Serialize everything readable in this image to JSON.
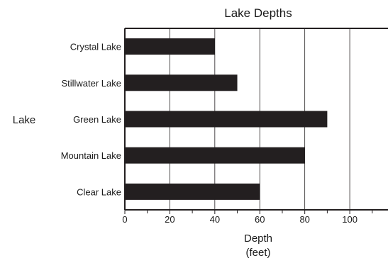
{
  "chart_data": {
    "type": "bar",
    "orientation": "horizontal",
    "title": "Lake Depths",
    "ylabel": "Lake",
    "xlabel_lines": [
      "Depth",
      "(feet)"
    ],
    "categories": [
      "Crystal Lake",
      "Stillwater Lake",
      "Green Lake",
      "Mountain Lake",
      "Clear Lake"
    ],
    "values": [
      40,
      50,
      90,
      80,
      60
    ],
    "xlim": [
      0,
      117
    ],
    "x_ticks": [
      0,
      20,
      40,
      60,
      80,
      100
    ],
    "x_minor_ticks": [
      10,
      30,
      50,
      70,
      90,
      110
    ],
    "grid": "vertical",
    "colors": {
      "bar": "#231f20",
      "axis": "#231f20",
      "grid": "#231f20"
    }
  }
}
